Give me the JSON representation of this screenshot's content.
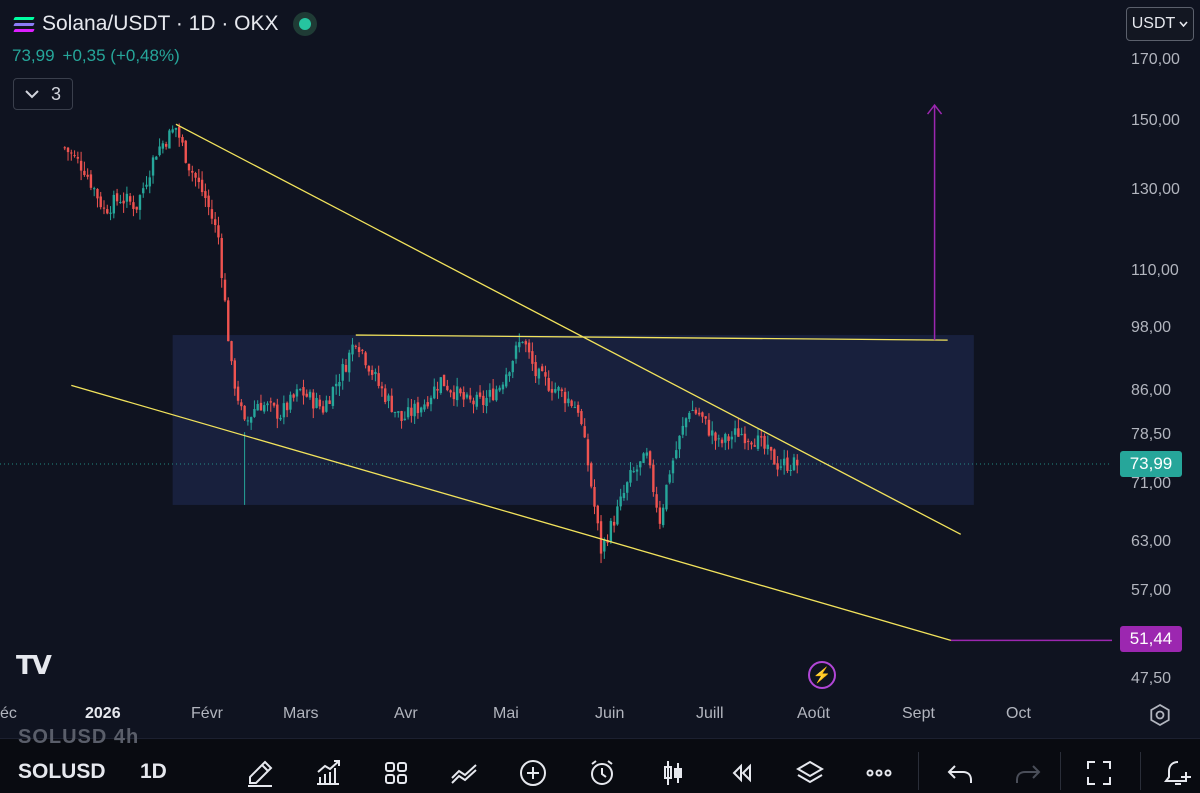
{
  "header": {
    "symbol_title": "Solana/USDT · 1D · OKX",
    "last_price": "73,99",
    "change": "+0,35 (+0,48%)",
    "indicators_count": "3",
    "currency_button": "USDT"
  },
  "price_axis": {
    "labels": [
      "170,00",
      "150,00",
      "130,00",
      "110,00",
      "98,00",
      "86,00",
      "78,50",
      "71,00",
      "63,00",
      "57,00",
      "47,50"
    ],
    "current_price_tag": "73,99",
    "target_tag": "51,44"
  },
  "time_axis": {
    "labels": [
      "éc",
      "2026",
      "Févr",
      "Mars",
      "Avr",
      "Mai",
      "Juin",
      "Juill",
      "Août",
      "Sept",
      "Oct"
    ]
  },
  "bottom_bar": {
    "ghost_symbol": "SOLUSD   4h",
    "symbol": "SOLUSD",
    "timeframe": "1D",
    "tools": [
      "brush-icon",
      "indicators-icon",
      "templates-icon",
      "compare-icon",
      "add-icon",
      "alert-icon",
      "candle-type-icon",
      "replay-icon",
      "layers-icon",
      "more-icon",
      "undo-icon",
      "redo-icon",
      "fullscreen-icon",
      "add-watchlist-icon"
    ]
  },
  "colors": {
    "up": "#26a69a",
    "down": "#ef5350",
    "trendline": "#f2e35c",
    "arrow": "#9c27b0",
    "zone": "#1a2343",
    "price_tag": "#26a69a",
    "target_tag": "#9c27b0"
  },
  "chart_data": {
    "type": "candlestick",
    "symbol": "Solana/USDT",
    "timeframe": "1D",
    "exchange": "OKX",
    "last": 73.99,
    "change": 0.35,
    "change_pct": 0.48,
    "y_scale": "log",
    "y_ticks": [
      170,
      150,
      130,
      110,
      98,
      86,
      78.5,
      71,
      63,
      57,
      47.5
    ],
    "x_ticks": [
      "éc",
      "2026",
      "Févr",
      "Mars",
      "Avr",
      "Mai",
      "Juin",
      "Juill",
      "Août",
      "Sept",
      "Oct"
    ],
    "price_path": [
      [
        "2025-12-20",
        142
      ],
      [
        "2025-12-26",
        136
      ],
      [
        "2026-01-01",
        125
      ],
      [
        "2026-01-06",
        128
      ],
      [
        "2026-01-11",
        126
      ],
      [
        "2026-01-17",
        141
      ],
      [
        "2026-01-23",
        148
      ],
      [
        "2026-01-27",
        137
      ],
      [
        "2026-02-01",
        128
      ],
      [
        "2026-02-05",
        118
      ],
      [
        "2026-02-09",
        90
      ],
      [
        "2026-02-13",
        80
      ],
      [
        "2026-02-17",
        84
      ],
      [
        "2026-02-24",
        82
      ],
      [
        "2026-03-02",
        86
      ],
      [
        "2026-03-09",
        83
      ],
      [
        "2026-03-16",
        91
      ],
      [
        "2026-03-19",
        96
      ],
      [
        "2026-03-26",
        87
      ],
      [
        "2026-04-02",
        81
      ],
      [
        "2026-04-09",
        84
      ],
      [
        "2026-04-14",
        88
      ],
      [
        "2026-04-22",
        84
      ],
      [
        "2026-04-27",
        84
      ],
      [
        "2026-05-02",
        87
      ],
      [
        "2026-05-09",
        96
      ],
      [
        "2026-05-13",
        89
      ],
      [
        "2026-05-20",
        86
      ],
      [
        "2026-05-26",
        83
      ],
      [
        "2026-05-29",
        74
      ],
      [
        "2026-06-02",
        62
      ],
      [
        "2026-06-06",
        66
      ],
      [
        "2026-06-11",
        72
      ],
      [
        "2026-06-16",
        75
      ],
      [
        "2026-06-20",
        66
      ],
      [
        "2026-06-23",
        73
      ],
      [
        "2026-06-29",
        83
      ],
      [
        "2026-07-02",
        82
      ],
      [
        "2026-07-08",
        77
      ],
      [
        "2026-07-14",
        79
      ],
      [
        "2026-07-19",
        78
      ],
      [
        "2026-07-26",
        74
      ],
      [
        "2026-08-01",
        73.99
      ]
    ],
    "annotations": {
      "upper_trendline": [
        [
          "2026-01-23",
          149
        ],
        [
          "2026-09-20",
          64
        ]
      ],
      "lower_trendline": [
        [
          "2025-12-22",
          87
        ],
        [
          "2026-09-17",
          51.44
        ]
      ],
      "resistance_line": [
        [
          "2026-03-19",
          96.5
        ],
        [
          "2026-09-16",
          95.5
        ]
      ],
      "range_box": {
        "from": "2026-01-22",
        "to": "2026-09-24",
        "top": 96.5,
        "bottom": 68
      },
      "target_arrow": {
        "date": "2026-09-12",
        "from": 95.5,
        "to": 155
      },
      "target_level": 51.44
    }
  }
}
